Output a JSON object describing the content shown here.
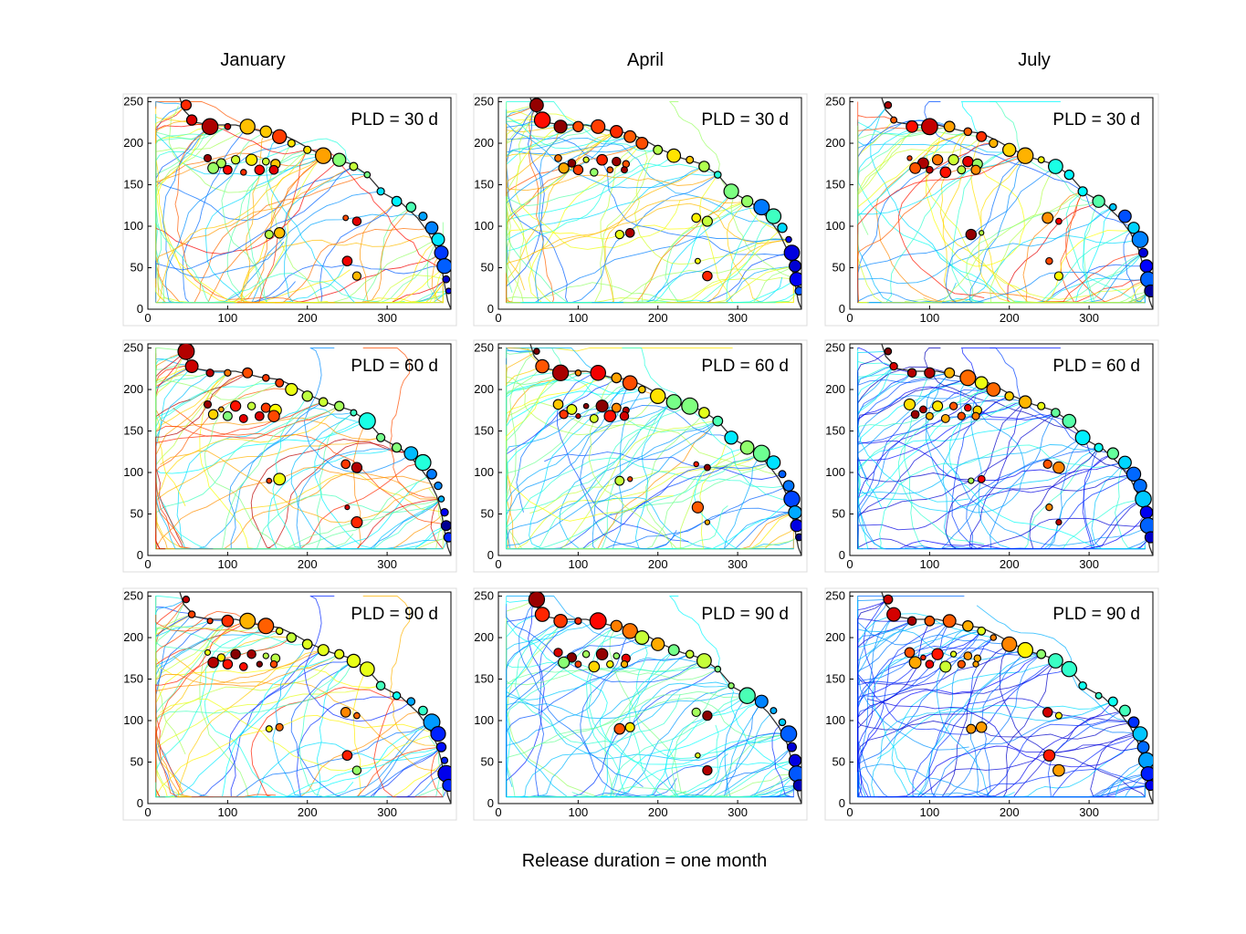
{
  "figure": {
    "caption": "Release duration = one month",
    "columns": [
      "January",
      "April",
      "July"
    ],
    "rows": [
      "PLD = 30 d",
      "PLD = 60 d",
      "PLD = 90 d"
    ]
  },
  "chart_data": [
    {
      "type": "scatter",
      "month": "January",
      "label": "PLD = 30 d",
      "xlim": [
        0,
        380
      ],
      "ylim": [
        0,
        255
      ],
      "x_ticks": [
        0,
        100,
        200,
        300
      ],
      "y_ticks": [
        0,
        50,
        100,
        150,
        200,
        250
      ]
    },
    {
      "type": "scatter",
      "month": "April",
      "label": "PLD = 30 d",
      "xlim": [
        0,
        380
      ],
      "ylim": [
        0,
        255
      ],
      "x_ticks": [
        0,
        100,
        200,
        300
      ],
      "y_ticks": [
        0,
        50,
        100,
        150,
        200,
        250
      ]
    },
    {
      "type": "scatter",
      "month": "July",
      "label": "PLD = 30 d",
      "xlim": [
        0,
        380
      ],
      "ylim": [
        0,
        255
      ],
      "x_ticks": [
        0,
        100,
        200,
        300
      ],
      "y_ticks": [
        0,
        50,
        100,
        150,
        200,
        250
      ]
    },
    {
      "type": "scatter",
      "month": "January",
      "label": "PLD = 60 d",
      "xlim": [
        0,
        380
      ],
      "ylim": [
        0,
        255
      ],
      "x_ticks": [
        0,
        100,
        200,
        300
      ],
      "y_ticks": [
        0,
        50,
        100,
        150,
        200,
        250
      ]
    },
    {
      "type": "scatter",
      "month": "April",
      "label": "PLD = 60 d",
      "xlim": [
        0,
        380
      ],
      "ylim": [
        0,
        255
      ],
      "x_ticks": [
        0,
        100,
        200,
        300
      ],
      "y_ticks": [
        0,
        50,
        100,
        150,
        200,
        250
      ]
    },
    {
      "type": "scatter",
      "month": "July",
      "label": "PLD = 60 d",
      "xlim": [
        0,
        380
      ],
      "ylim": [
        0,
        255
      ],
      "x_ticks": [
        0,
        100,
        200,
        300
      ],
      "y_ticks": [
        0,
        50,
        100,
        150,
        200,
        250
      ]
    },
    {
      "type": "scatter",
      "month": "January",
      "label": "PLD = 90 d",
      "xlim": [
        0,
        380
      ],
      "ylim": [
        0,
        255
      ],
      "x_ticks": [
        0,
        100,
        200,
        300
      ],
      "y_ticks": [
        0,
        50,
        100,
        150,
        200,
        250
      ]
    },
    {
      "type": "scatter",
      "month": "April",
      "label": "PLD = 90 d",
      "xlim": [
        0,
        380
      ],
      "ylim": [
        0,
        255
      ],
      "x_ticks": [
        0,
        100,
        200,
        300
      ],
      "y_ticks": [
        0,
        50,
        100,
        150,
        200,
        250
      ]
    },
    {
      "type": "scatter",
      "month": "July",
      "label": "PLD = 90 d",
      "xlim": [
        0,
        380
      ],
      "ylim": [
        0,
        255
      ],
      "x_ticks": [
        0,
        100,
        200,
        300
      ],
      "y_ticks": [
        0,
        50,
        100,
        150,
        200,
        250
      ]
    }
  ]
}
